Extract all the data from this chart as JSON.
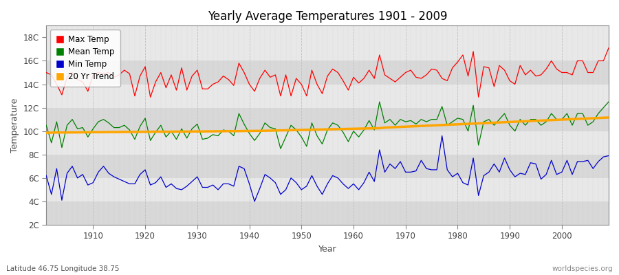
{
  "title": "Yearly Average Temperatures 1901 - 2009",
  "xlabel": "Year",
  "ylabel": "Temperature",
  "footnote_left": "Latitude 46.75 Longitude 38.75",
  "footnote_right": "worldspecies.org",
  "ylim": [
    2,
    19
  ],
  "yticks": [
    2,
    4,
    6,
    8,
    10,
    12,
    14,
    16,
    18
  ],
  "ytick_labels": [
    "2C",
    "4C",
    "6C",
    "8C",
    "10C",
    "12C",
    "14C",
    "16C",
    "18C"
  ],
  "xlim": [
    1901,
    2009
  ],
  "xticks": [
    1910,
    1920,
    1930,
    1940,
    1950,
    1960,
    1970,
    1980,
    1990,
    2000
  ],
  "color_max": "#ff0000",
  "color_mean": "#008000",
  "color_min": "#0000cc",
  "color_trend": "#ffa500",
  "legend_labels": [
    "Max Temp",
    "Mean Temp",
    "Min Temp",
    "20 Yr Trend"
  ],
  "legend_colors": [
    "#ff0000",
    "#008000",
    "#0000cc",
    "#ffa500"
  ],
  "bg_color": "#ffffff",
  "plot_bg_light": "#e8e8e8",
  "plot_bg_dark": "#d8d8d8",
  "max_temps": [
    15.0,
    14.8,
    14.0,
    13.1,
    14.6,
    15.0,
    14.4,
    14.2,
    13.4,
    14.8,
    15.0,
    14.9,
    15.0,
    14.6,
    14.8,
    15.2,
    14.9,
    13.0,
    14.7,
    15.5,
    12.9,
    14.2,
    15.0,
    13.7,
    14.8,
    13.5,
    15.4,
    13.5,
    14.7,
    15.2,
    13.6,
    13.6,
    14.0,
    14.2,
    14.7,
    14.4,
    13.9,
    15.8,
    15.0,
    14.0,
    13.4,
    14.5,
    15.2,
    14.6,
    14.8,
    13.0,
    14.8,
    13.0,
    14.5,
    14.0,
    13.0,
    15.2,
    14.0,
    13.2,
    14.7,
    15.3,
    15.0,
    14.3,
    13.5,
    14.6,
    14.1,
    14.5,
    15.2,
    14.5,
    16.5,
    14.8,
    14.5,
    14.2,
    14.6,
    15.0,
    15.2,
    14.6,
    14.5,
    14.8,
    15.3,
    15.2,
    14.5,
    14.3,
    15.4,
    15.9,
    16.5,
    14.7,
    16.8,
    12.9,
    15.5,
    15.4,
    13.8,
    15.6,
    15.2,
    14.3,
    14.0,
    15.6,
    14.8,
    15.2,
    14.7,
    14.8,
    15.3,
    16.0,
    15.3,
    15.0,
    15.0,
    14.8,
    16.0,
    16.0,
    15.0,
    15.0,
    16.0,
    16.0,
    17.1
  ],
  "mean_temps": [
    10.5,
    9.0,
    10.8,
    8.6,
    10.5,
    11.0,
    10.2,
    10.3,
    9.5,
    10.2,
    10.8,
    11.0,
    10.7,
    10.3,
    10.3,
    10.5,
    10.1,
    9.3,
    10.4,
    11.1,
    9.2,
    9.9,
    10.5,
    9.5,
    10.0,
    9.3,
    10.2,
    9.4,
    10.2,
    10.6,
    9.3,
    9.4,
    9.7,
    9.6,
    10.1,
    10.0,
    9.6,
    11.5,
    10.6,
    9.8,
    9.2,
    9.8,
    10.7,
    10.3,
    10.2,
    8.5,
    9.5,
    10.5,
    10.1,
    9.5,
    8.7,
    10.7,
    9.6,
    8.9,
    10.1,
    10.7,
    10.5,
    9.9,
    9.1,
    10.0,
    9.5,
    10.1,
    10.9,
    10.1,
    12.5,
    10.7,
    11.0,
    10.5,
    11.0,
    10.8,
    10.9,
    10.6,
    11.0,
    10.8,
    11.0,
    11.0,
    12.1,
    10.5,
    10.8,
    11.1,
    11.0,
    10.0,
    12.2,
    8.8,
    10.8,
    11.0,
    10.5,
    11.0,
    11.5,
    10.5,
    10.0,
    11.0,
    10.5,
    11.0,
    11.0,
    10.5,
    10.8,
    11.5,
    11.0,
    11.0,
    11.5,
    10.5,
    11.5,
    11.5,
    10.5,
    10.8,
    11.5,
    12.0,
    12.5
  ],
  "min_temps": [
    6.2,
    4.6,
    6.8,
    4.1,
    6.4,
    7.0,
    6.0,
    6.3,
    5.4,
    5.6,
    6.5,
    7.0,
    6.4,
    6.1,
    5.9,
    5.7,
    5.5,
    5.5,
    6.3,
    6.7,
    5.4,
    5.6,
    6.1,
    5.2,
    5.5,
    5.1,
    5.0,
    5.3,
    5.7,
    6.1,
    5.2,
    5.2,
    5.4,
    5.0,
    5.5,
    5.5,
    5.3,
    7.0,
    6.8,
    5.5,
    4.0,
    5.1,
    6.3,
    6.0,
    5.6,
    4.6,
    5.0,
    6.0,
    5.6,
    5.0,
    5.3,
    6.2,
    5.3,
    4.6,
    5.5,
    6.2,
    6.0,
    5.5,
    5.1,
    5.5,
    5.0,
    5.6,
    6.5,
    5.7,
    8.4,
    6.5,
    7.2,
    6.8,
    7.4,
    6.5,
    6.5,
    6.6,
    7.5,
    6.8,
    6.7,
    6.7,
    9.6,
    6.7,
    6.1,
    6.4,
    5.6,
    5.4,
    7.7,
    4.5,
    6.2,
    6.5,
    7.2,
    6.5,
    7.7,
    6.7,
    6.1,
    6.4,
    6.3,
    7.3,
    7.2,
    5.9,
    6.3,
    7.5,
    6.3,
    6.5,
    7.5,
    6.3,
    7.4,
    7.4,
    7.5,
    6.8,
    7.4,
    7.8,
    7.9
  ],
  "trend_temps": [
    9.85,
    9.87,
    9.88,
    9.88,
    9.88,
    9.89,
    9.89,
    9.9,
    9.9,
    9.91,
    9.91,
    9.91,
    9.92,
    9.92,
    9.92,
    9.93,
    9.93,
    9.93,
    9.94,
    9.94,
    9.94,
    9.95,
    9.95,
    9.95,
    9.95,
    9.96,
    9.96,
    9.96,
    9.97,
    9.97,
    9.97,
    9.98,
    9.98,
    9.99,
    9.99,
    10.0,
    10.0,
    10.0,
    10.01,
    10.01,
    10.02,
    10.02,
    10.03,
    10.04,
    10.05,
    10.06,
    10.07,
    10.08,
    10.09,
    10.1,
    10.11,
    10.12,
    10.13,
    10.14,
    10.15,
    10.16,
    10.17,
    10.18,
    10.19,
    10.2,
    10.21,
    10.22,
    10.23,
    10.24,
    10.25,
    10.3,
    10.32,
    10.34,
    10.36,
    10.38,
    10.4,
    10.42,
    10.44,
    10.46,
    10.48,
    10.5,
    10.52,
    10.54,
    10.56,
    10.58,
    10.6,
    10.62,
    10.64,
    10.66,
    10.68,
    10.7,
    10.72,
    10.74,
    10.76,
    10.78,
    10.8,
    10.82,
    10.84,
    10.86,
    10.88,
    10.9,
    10.92,
    10.94,
    10.96,
    10.98,
    11.0,
    11.02,
    11.04,
    11.06,
    11.08,
    11.1,
    11.12,
    11.14,
    11.16
  ]
}
